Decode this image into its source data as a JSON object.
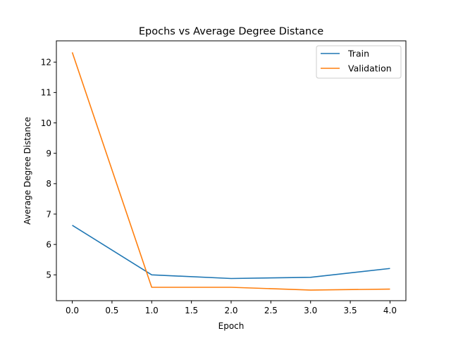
{
  "chart_data": {
    "type": "line",
    "title": "Epochs vs Average Degree Distance",
    "xlabel": "Epoch",
    "ylabel": "Average Degree Distance",
    "x": [
      0,
      1,
      2,
      3,
      4
    ],
    "xlim": [
      -0.2,
      4.2
    ],
    "ylim": [
      4.15,
      12.7
    ],
    "xticks": [
      0.0,
      0.5,
      1.0,
      1.5,
      2.0,
      2.5,
      3.0,
      3.5,
      4.0
    ],
    "xtick_labels": [
      "0.0",
      "0.5",
      "1.0",
      "1.5",
      "2.0",
      "2.5",
      "3.0",
      "3.5",
      "4.0"
    ],
    "yticks": [
      5,
      6,
      7,
      8,
      9,
      10,
      11,
      12
    ],
    "ytick_labels": [
      "5",
      "6",
      "7",
      "8",
      "9",
      "10",
      "11",
      "12"
    ],
    "grid": false,
    "legend_position": "top-right",
    "series": [
      {
        "name": "Train",
        "color": "#1f77b4",
        "values": [
          6.63,
          5.0,
          4.88,
          4.92,
          5.21
        ]
      },
      {
        "name": "Validation",
        "color": "#ff7f0e",
        "values": [
          12.32,
          4.59,
          4.59,
          4.5,
          4.53
        ]
      }
    ]
  }
}
